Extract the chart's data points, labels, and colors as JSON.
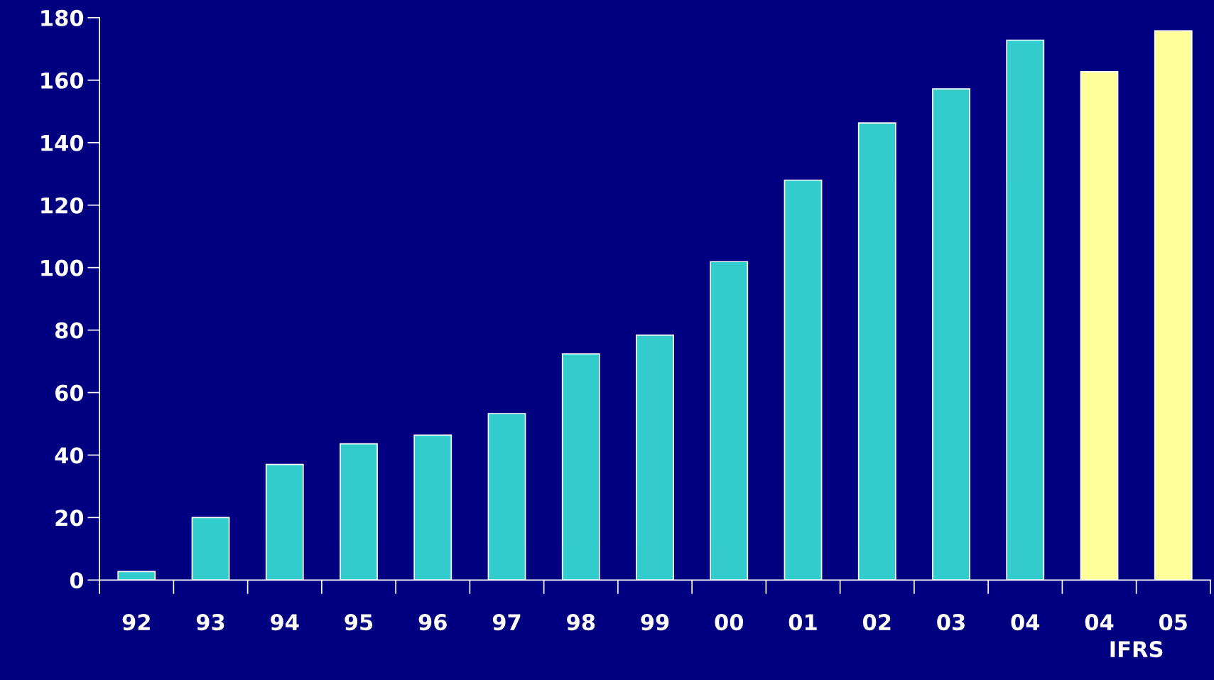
{
  "chart_data": {
    "type": "bar",
    "categories": [
      "92",
      "93",
      "94",
      "95",
      "96",
      "97",
      "98",
      "99",
      "00",
      "01",
      "02",
      "03",
      "04",
      "04",
      "05"
    ],
    "values": [
      2.7,
      20,
      37,
      43.6,
      46.4,
      53.3,
      72.4,
      78.4,
      101.9,
      128,
      146.3,
      157.2,
      172.8,
      162.7,
      175.8
    ],
    "colors": [
      "#33cccc",
      "#33cccc",
      "#33cccc",
      "#33cccc",
      "#33cccc",
      "#33cccc",
      "#33cccc",
      "#33cccc",
      "#33cccc",
      "#33cccc",
      "#33cccc",
      "#33cccc",
      "#33cccc",
      "#ffff99",
      "#ffff99"
    ],
    "ylim": [
      0,
      180
    ],
    "yticks": [
      0,
      20,
      40,
      60,
      80,
      100,
      120,
      140,
      160,
      180
    ],
    "annotations": [
      "IFRS"
    ],
    "grid": false,
    "legend": false
  }
}
